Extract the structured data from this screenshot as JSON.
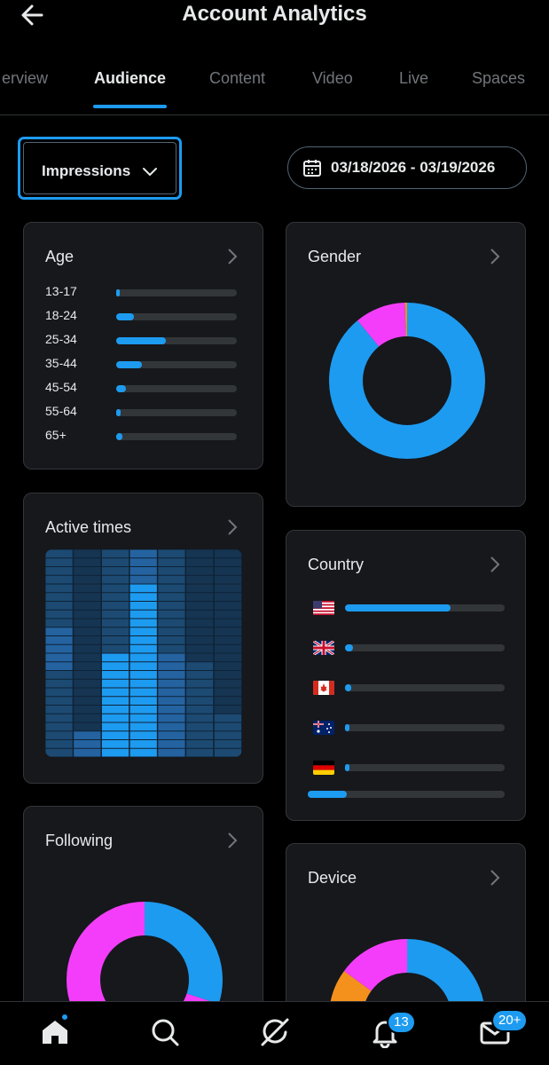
{
  "header": {
    "title": "Account Analytics"
  },
  "tabs": [
    {
      "label": "erview",
      "active": false
    },
    {
      "label": "Audience",
      "active": true
    },
    {
      "label": "Content",
      "active": false
    },
    {
      "label": "Video",
      "active": false
    },
    {
      "label": "Live",
      "active": false
    },
    {
      "label": "Spaces",
      "active": false
    }
  ],
  "filter": {
    "metric": "Impressions",
    "date_range": "03/18/2026 - 03/19/2026"
  },
  "age": {
    "title": "Age",
    "rows": [
      {
        "label": "13-17",
        "value": 0.03
      },
      {
        "label": "18-24",
        "value": 0.15
      },
      {
        "label": "25-34",
        "value": 0.41
      },
      {
        "label": "35-44",
        "value": 0.21
      },
      {
        "label": "45-54",
        "value": 0.08
      },
      {
        "label": "55-64",
        "value": 0.04
      },
      {
        "label": "65+",
        "value": 0.05
      }
    ]
  },
  "gender": {
    "title": "Gender",
    "segments": [
      {
        "value": 0.89,
        "color": "#1d9bf0"
      },
      {
        "value": 0.105,
        "color": "#f43dfa"
      },
      {
        "value": 0.005,
        "color": "#f4911d"
      }
    ]
  },
  "active_times": {
    "title": "Active times"
  },
  "country": {
    "title": "Country",
    "rows": [
      {
        "flag": "us-flag-icon",
        "value": 0.66
      },
      {
        "flag": "uk-flag-icon",
        "value": 0.05
      },
      {
        "flag": "canada-flag-icon",
        "value": 0.04
      },
      {
        "flag": "australia-flag-icon",
        "value": 0.02
      },
      {
        "flag": "germany-flag-icon",
        "value": 0.01
      }
    ],
    "scroll_position": 0.2
  },
  "following": {
    "title": "Following",
    "segments": [
      {
        "value": 0.3,
        "color": "#1d9bf0"
      },
      {
        "value": 0.2,
        "color": "#f43dfa"
      },
      {
        "value": 0.5,
        "color": "#f43dfa"
      }
    ]
  },
  "device": {
    "title": "Device",
    "segments": [
      {
        "value": 0.38,
        "color": "#1d9bf0"
      },
      {
        "value": 0.47,
        "color": "#f4911d"
      },
      {
        "value": 0.15,
        "color": "#f43dfa"
      }
    ]
  },
  "nav": {
    "notifications_badge": "13",
    "messages_badge": "20+"
  },
  "colors": {
    "accent": "#1d9bf0",
    "card_bg": "#16181c",
    "track": "#333639"
  }
}
